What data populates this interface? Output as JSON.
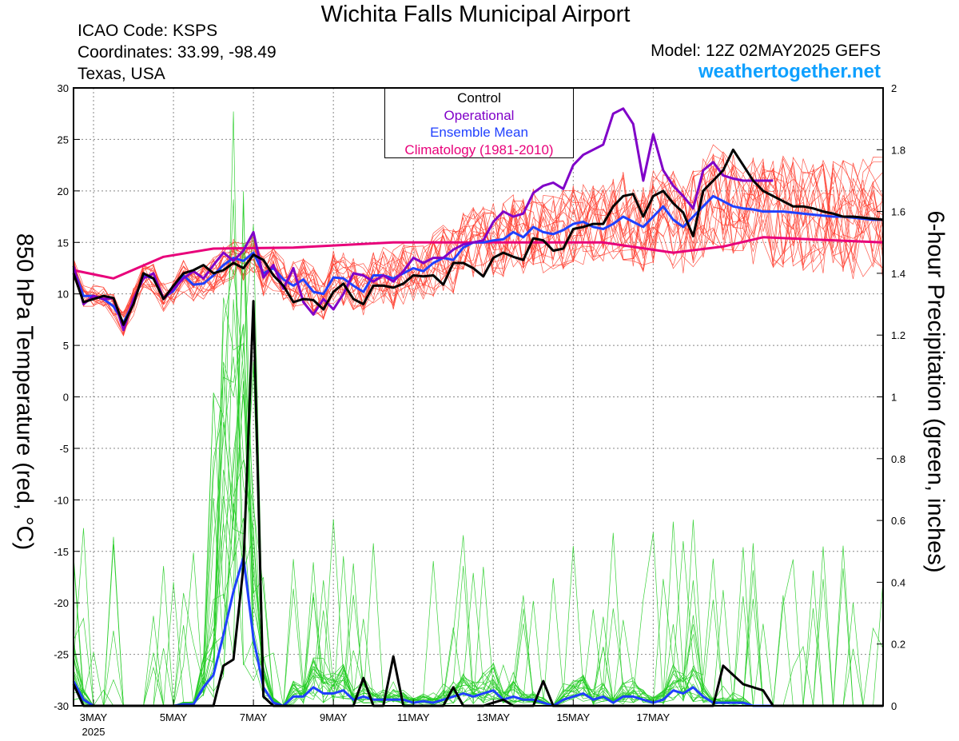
{
  "header": {
    "title": "Wichita Falls Municipal Airport",
    "icao": "ICAO Code: KSPS",
    "coordinates": "Coordinates: 33.99, -98.49",
    "region": "Texas, USA",
    "model": "Model: 12Z 02MAY2025 GEFS",
    "website": "weathertogether.net"
  },
  "legend": {
    "items": [
      {
        "label": "Control",
        "color": "#000000"
      },
      {
        "label": "Operational",
        "color": "#8000c8"
      },
      {
        "label": "Ensemble Mean",
        "color": "#2040ff"
      },
      {
        "label": "Climatology (1981-2010)",
        "color": "#e8007a"
      }
    ]
  },
  "chart_data": {
    "type": "line",
    "ylabel": "850 hPa Temperature (red, °C)",
    "y2label": "6-hour Precipitation (green, inches)",
    "ylim": [
      -30,
      30
    ],
    "y2lim": [
      0,
      2
    ],
    "xlim": [
      -2,
      79
    ],
    "x_unit": "6-hour steps from 00Z 03MAY2025",
    "yticks": [
      -30,
      -25,
      -20,
      -15,
      -10,
      -5,
      0,
      5,
      10,
      15,
      20,
      25,
      30
    ],
    "y2ticks": [
      "0",
      "0.2",
      "0.4",
      "0.6",
      "0.8",
      "1",
      "1.2",
      "1.4",
      "1.6",
      "1.8",
      "2"
    ],
    "xticks": [
      {
        "x": 0,
        "label": "3MAY",
        "sub": "2025"
      },
      {
        "x": 8,
        "label": "5MAY"
      },
      {
        "x": 16,
        "label": "7MAY"
      },
      {
        "x": 24,
        "label": "9MAY"
      },
      {
        "x": 32,
        "label": "11MAY"
      },
      {
        "x": 40,
        "label": "13MAY"
      },
      {
        "x": 48,
        "label": "15MAY"
      },
      {
        "x": 56,
        "label": "17MAY"
      }
    ],
    "grid": true,
    "colors": {
      "members_temp": "#ff3a2a",
      "members_precip": "#22cc22",
      "control": "#000000",
      "operational": "#8000c8",
      "mean": "#2040ff",
      "climatology": "#e8007a"
    },
    "series": [
      {
        "name": "Climatology (1981-2010)",
        "axis": "left",
        "x": [
          -2,
          2,
          7,
          12,
          20,
          30,
          37,
          44,
          51,
          58,
          63,
          67,
          79
        ],
        "values": [
          12.3,
          11.5,
          13.6,
          14.4,
          14.5,
          15.0,
          15.0,
          15.0,
          15.0,
          14.0,
          14.6,
          15.5,
          15.0
        ]
      },
      {
        "name": "Control",
        "axis": "left",
        "x": [
          -2,
          -1,
          0,
          1,
          2,
          3,
          4,
          5,
          6,
          7,
          8,
          9,
          10,
          11,
          12,
          13,
          14,
          15,
          16,
          17,
          18,
          19,
          20,
          21,
          22,
          23,
          24,
          25,
          26,
          27,
          28,
          29,
          30,
          31,
          32,
          33,
          34,
          35,
          36,
          37,
          38,
          39,
          40,
          41,
          42,
          43,
          44,
          45,
          46,
          47,
          48,
          49,
          50,
          51,
          52,
          53,
          54,
          55,
          56,
          57,
          58,
          59,
          60,
          61,
          62,
          63,
          64,
          65,
          66,
          67,
          68,
          69,
          70,
          71,
          72,
          73,
          74,
          75,
          76,
          77,
          78,
          79
        ],
        "values": [
          12.0,
          9.2,
          9.5,
          9.8,
          9.6,
          7.0,
          9.0,
          12.0,
          11.5,
          9.5,
          10.8,
          12.0,
          12.3,
          12.8,
          12.0,
          12.3,
          13.0,
          12.5,
          13.8,
          13.3,
          11.8,
          10.8,
          9.2,
          9.5,
          9.4,
          8.5,
          10.2,
          11.0,
          9.5,
          9.0,
          10.8,
          10.8,
          10.6,
          11.0,
          11.8,
          11.7,
          11.8,
          10.9,
          13.0,
          13.0,
          12.5,
          11.7,
          13.5,
          14.0,
          13.6,
          13.3,
          15.4,
          15.2,
          14.2,
          14.4,
          16.3,
          16.5,
          16.8,
          16.8,
          18.5,
          19.5,
          19.7,
          17.5,
          19.5,
          20.0,
          18.8,
          17.9,
          15.6,
          20.0,
          21.0,
          22.0,
          24.0,
          22.5,
          21.0,
          20.0,
          19.5,
          19.0,
          18.5,
          18.5,
          18.3,
          18.0,
          17.8,
          17.5,
          17.5,
          17.4,
          17.3,
          17.2
        ]
      },
      {
        "name": "Operational",
        "axis": "left",
        "x": [
          -2,
          -1,
          0,
          1,
          2,
          3,
          4,
          5,
          6,
          7,
          8,
          9,
          10,
          11,
          12,
          13,
          14,
          15,
          16,
          17,
          18,
          19,
          20,
          21,
          22,
          23,
          24,
          25,
          26,
          27,
          28,
          29,
          30,
          31,
          32,
          33,
          34,
          35,
          36,
          37,
          38,
          39,
          40,
          41,
          42,
          43,
          44,
          45,
          46,
          47,
          48,
          49,
          50,
          51,
          52,
          53,
          54,
          55,
          56,
          57,
          58,
          59,
          60,
          61,
          62,
          63,
          64,
          65,
          66,
          67,
          68
        ],
        "values": [
          12.7,
          9.0,
          9.8,
          9.5,
          9.6,
          6.5,
          9.5,
          11.5,
          12.0,
          9.5,
          10.5,
          11.5,
          12.2,
          11.5,
          12.8,
          14.0,
          13.2,
          14.2,
          16.0,
          11.6,
          12.8,
          10.5,
          12.5,
          9.2,
          8.0,
          9.5,
          8.5,
          10.0,
          12.0,
          11.8,
          11.2,
          11.8,
          11.2,
          12.2,
          13.5,
          13.0,
          13.5,
          13.5,
          14.3,
          14.8,
          15.0,
          15.2,
          17.0,
          18.0,
          17.5,
          17.8,
          19.8,
          20.5,
          20.8,
          20.2,
          22.5,
          23.5,
          24.0,
          24.5,
          27.5,
          28.0,
          26.5,
          21.0,
          25.5,
          22.0,
          20.5,
          19.5,
          18.3,
          22.0,
          22.8,
          21.5,
          21.2,
          21.0,
          21.0,
          21.0,
          21.0
        ]
      },
      {
        "name": "Ensemble Mean",
        "axis": "left",
        "x": [
          -2,
          -1,
          0,
          1,
          2,
          3,
          4,
          5,
          6,
          7,
          8,
          9,
          10,
          11,
          12,
          13,
          14,
          15,
          16,
          17,
          18,
          19,
          20,
          21,
          22,
          23,
          24,
          25,
          26,
          27,
          28,
          29,
          30,
          31,
          32,
          33,
          34,
          35,
          36,
          37,
          38,
          39,
          40,
          41,
          42,
          43,
          44,
          45,
          46,
          47,
          48,
          49,
          50,
          51,
          52,
          53,
          54,
          55,
          56,
          57,
          58,
          59,
          60,
          61,
          62,
          63,
          64,
          65,
          66,
          67,
          68,
          69,
          70,
          71,
          72,
          73,
          74,
          75,
          76,
          77,
          78,
          79
        ],
        "values": [
          12.5,
          9.8,
          9.8,
          9.5,
          8.8,
          7.2,
          9.2,
          11.8,
          11.5,
          9.6,
          10.3,
          11.8,
          10.9,
          11.0,
          11.8,
          12.8,
          13.5,
          13.2,
          14.0,
          12.0,
          12.5,
          11.4,
          10.8,
          11.4,
          10.2,
          10.0,
          11.6,
          11.5,
          10.8,
          10.2,
          11.8,
          11.8,
          11.5,
          12.0,
          12.5,
          12.2,
          13.0,
          13.5,
          13.3,
          14.5,
          15.0,
          15.0,
          15.2,
          15.3,
          16.0,
          15.5,
          16.5,
          16.0,
          15.8,
          16.2,
          16.8,
          17.0,
          16.5,
          16.3,
          16.8,
          17.5,
          17.0,
          16.5,
          17.5,
          18.5,
          17.2,
          16.5,
          17.5,
          18.5,
          19.5,
          19.0,
          18.5,
          18.3,
          18.2,
          18.0,
          18.0,
          18.0,
          17.9,
          17.8,
          17.7,
          17.6,
          17.5,
          17.5,
          17.4,
          17.3,
          17.2,
          17.2
        ]
      }
    ],
    "precip_series": [
      {
        "name": "Control",
        "axis": "right",
        "x": [
          -2,
          -1,
          0,
          1,
          2,
          3,
          4,
          5,
          6,
          7,
          8,
          9,
          10,
          11,
          12,
          13,
          14,
          15,
          16,
          17,
          18,
          19,
          20,
          21,
          22,
          23,
          24,
          25,
          26,
          27,
          28,
          29,
          30,
          31,
          32,
          33,
          34,
          35,
          36,
          37,
          38,
          39,
          40,
          41,
          42,
          43,
          44,
          45,
          46,
          47,
          48,
          49,
          50,
          51,
          52,
          53,
          54,
          55,
          56,
          57,
          58,
          59,
          60,
          61,
          62,
          63,
          64,
          65,
          66,
          67,
          68,
          69,
          70,
          71,
          72,
          73,
          74,
          75,
          76,
          77,
          78,
          79
        ],
        "values": [
          0.07,
          0,
          0,
          0,
          0,
          0,
          0,
          0,
          0,
          0,
          0,
          0,
          0,
          0,
          0,
          0.13,
          0.15,
          0.45,
          1.31,
          0.03,
          0,
          0,
          0,
          0,
          0,
          0,
          0,
          0,
          0,
          0.09,
          0,
          0,
          0.16,
          0,
          0,
          0,
          0,
          0,
          0.06,
          0,
          0,
          0,
          0.01,
          0.02,
          0,
          0,
          0,
          0.08,
          0,
          0,
          0,
          0,
          0,
          0,
          0,
          0,
          0,
          0,
          0,
          0,
          0,
          0,
          0,
          0,
          0,
          0.13,
          0.1,
          0.07,
          0.06,
          0.05,
          0,
          0,
          0,
          0,
          0,
          0,
          0,
          0,
          0,
          0,
          0,
          0
        ]
      },
      {
        "name": "Ensemble Mean",
        "axis": "right",
        "x": [
          -2,
          -1,
          0,
          1,
          2,
          3,
          4,
          5,
          6,
          7,
          8,
          9,
          10,
          11,
          12,
          13,
          14,
          15,
          16,
          17,
          18,
          19,
          20,
          21,
          22,
          23,
          24,
          25,
          26,
          27,
          28,
          29,
          30,
          31,
          32,
          33,
          34,
          35,
          36,
          37,
          38,
          39,
          40,
          41,
          42,
          43,
          44,
          45,
          46,
          47,
          48,
          49,
          50,
          51,
          52,
          53,
          54,
          55,
          56,
          57,
          58,
          59,
          60,
          61,
          62,
          63,
          64,
          65,
          66,
          67,
          68,
          69,
          70,
          71,
          72,
          73,
          74,
          75,
          76,
          77,
          78,
          79
        ],
        "values": [
          0.08,
          0.02,
          0,
          0,
          0,
          0,
          0,
          0,
          0,
          0,
          0,
          0.005,
          0.005,
          0.06,
          0.1,
          0.23,
          0.37,
          0.48,
          0.22,
          0.06,
          0.01,
          0,
          0.03,
          0.03,
          0.06,
          0.04,
          0.04,
          0.05,
          0.02,
          0.03,
          0.02,
          0.02,
          0.02,
          0.02,
          0.01,
          0.015,
          0.01,
          0.02,
          0.03,
          0.04,
          0.03,
          0.04,
          0.05,
          0.02,
          0.03,
          0.02,
          0.02,
          0.01,
          0,
          0.02,
          0.03,
          0.04,
          0.02,
          0.03,
          0.01,
          0.03,
          0.03,
          0.02,
          0.01,
          0.02,
          0.05,
          0.04,
          0.06,
          0.03,
          0.01,
          0.01,
          0.01,
          0.01,
          0,
          0,
          0,
          0,
          0,
          0,
          0,
          0,
          0,
          0,
          0,
          0,
          0,
          0
        ]
      }
    ]
  }
}
